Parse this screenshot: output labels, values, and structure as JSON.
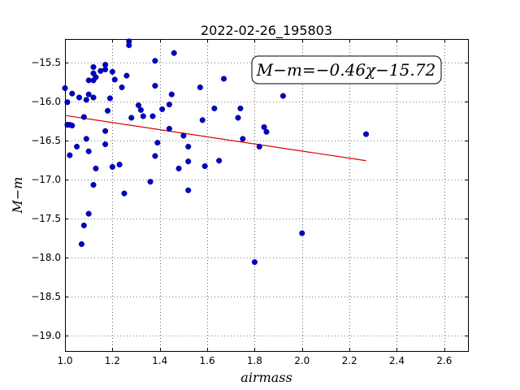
{
  "chart_data": {
    "type": "scatter",
    "title": "2022-02-26_195803",
    "xlabel": "airmass",
    "ylabel": "M−m",
    "xlim": [
      1.0,
      2.7
    ],
    "ylim": [
      -19.2,
      -15.2
    ],
    "y_inverted": true,
    "grid": true,
    "x_ticks": [
      1.0,
      1.2,
      1.4,
      1.6,
      1.8,
      2.0,
      2.2,
      2.4,
      2.6
    ],
    "x_tick_labels": [
      "1.0",
      "1.2",
      "1.4",
      "1.6",
      "1.8",
      "2.0",
      "2.2",
      "2.4",
      "2.6"
    ],
    "y_ticks": [
      -15.5,
      -16.0,
      -16.5,
      -17.0,
      -17.5,
      -18.0,
      -18.5,
      -19.0
    ],
    "y_tick_labels": [
      "−15.5",
      "−16.0",
      "−16.5",
      "−17.0",
      "−17.5",
      "−18.0",
      "−18.5",
      "−19.0"
    ],
    "annotation": "M−m=−0.46χ−15.72",
    "colors": {
      "points": "#0000cc",
      "fit_line": "#dd0000"
    },
    "fit_line": {
      "x": [
        1.0,
        2.27
      ],
      "y": [
        -16.18,
        -16.76
      ]
    },
    "points": [
      {
        "x": 1.0,
        "y": -15.83
      },
      {
        "x": 1.01,
        "y": -16.01
      },
      {
        "x": 1.01,
        "y": -16.3
      },
      {
        "x": 1.02,
        "y": -16.3
      },
      {
        "x": 1.02,
        "y": -16.69
      },
      {
        "x": 1.03,
        "y": -15.9
      },
      {
        "x": 1.03,
        "y": -16.31
      },
      {
        "x": 1.05,
        "y": -16.58
      },
      {
        "x": 1.06,
        "y": -15.95
      },
      {
        "x": 1.07,
        "y": -17.83
      },
      {
        "x": 1.08,
        "y": -16.2
      },
      {
        "x": 1.08,
        "y": -17.59
      },
      {
        "x": 1.09,
        "y": -15.98
      },
      {
        "x": 1.09,
        "y": -16.48
      },
      {
        "x": 1.1,
        "y": -16.64
      },
      {
        "x": 1.1,
        "y": -17.44
      },
      {
        "x": 1.1,
        "y": -15.91
      },
      {
        "x": 1.1,
        "y": -15.73
      },
      {
        "x": 1.12,
        "y": -15.95
      },
      {
        "x": 1.12,
        "y": -15.56
      },
      {
        "x": 1.12,
        "y": -15.64
      },
      {
        "x": 1.12,
        "y": -15.73
      },
      {
        "x": 1.12,
        "y": -17.07
      },
      {
        "x": 1.13,
        "y": -16.86
      },
      {
        "x": 1.13,
        "y": -15.69
      },
      {
        "x": 1.15,
        "y": -15.61
      },
      {
        "x": 1.17,
        "y": -15.53
      },
      {
        "x": 1.17,
        "y": -15.59
      },
      {
        "x": 1.17,
        "y": -16.38
      },
      {
        "x": 1.17,
        "y": -16.55
      },
      {
        "x": 1.18,
        "y": -16.12
      },
      {
        "x": 1.19,
        "y": -15.96
      },
      {
        "x": 1.2,
        "y": -15.62
      },
      {
        "x": 1.2,
        "y": -16.84
      },
      {
        "x": 1.21,
        "y": -15.72
      },
      {
        "x": 1.23,
        "y": -16.81
      },
      {
        "x": 1.24,
        "y": -15.82
      },
      {
        "x": 1.25,
        "y": -17.18
      },
      {
        "x": 1.26,
        "y": -15.67
      },
      {
        "x": 1.27,
        "y": -15.23
      },
      {
        "x": 1.27,
        "y": -15.28
      },
      {
        "x": 1.28,
        "y": -16.21
      },
      {
        "x": 1.31,
        "y": -16.05
      },
      {
        "x": 1.32,
        "y": -16.11
      },
      {
        "x": 1.33,
        "y": -16.19
      },
      {
        "x": 1.36,
        "y": -17.03
      },
      {
        "x": 1.37,
        "y": -16.19
      },
      {
        "x": 1.38,
        "y": -15.8
      },
      {
        "x": 1.38,
        "y": -16.7
      },
      {
        "x": 1.38,
        "y": -15.48
      },
      {
        "x": 1.39,
        "y": -16.53
      },
      {
        "x": 1.41,
        "y": -16.1
      },
      {
        "x": 1.44,
        "y": -16.04
      },
      {
        "x": 1.44,
        "y": -16.35
      },
      {
        "x": 1.45,
        "y": -15.91
      },
      {
        "x": 1.46,
        "y": -15.38
      },
      {
        "x": 1.48,
        "y": -16.86
      },
      {
        "x": 1.5,
        "y": -16.44
      },
      {
        "x": 1.52,
        "y": -16.77
      },
      {
        "x": 1.52,
        "y": -17.14
      },
      {
        "x": 1.52,
        "y": -16.58
      },
      {
        "x": 1.57,
        "y": -15.82
      },
      {
        "x": 1.58,
        "y": -16.24
      },
      {
        "x": 1.59,
        "y": -16.83
      },
      {
        "x": 1.63,
        "y": -16.09
      },
      {
        "x": 1.65,
        "y": -16.76
      },
      {
        "x": 1.67,
        "y": -15.71
      },
      {
        "x": 1.73,
        "y": -16.21
      },
      {
        "x": 1.74,
        "y": -16.09
      },
      {
        "x": 1.75,
        "y": -16.48
      },
      {
        "x": 1.8,
        "y": -18.06
      },
      {
        "x": 1.82,
        "y": -16.58
      },
      {
        "x": 1.84,
        "y": -16.33
      },
      {
        "x": 1.85,
        "y": -16.39
      },
      {
        "x": 1.92,
        "y": -15.93
      },
      {
        "x": 2.0,
        "y": -17.69
      },
      {
        "x": 2.27,
        "y": -16.42
      }
    ]
  }
}
